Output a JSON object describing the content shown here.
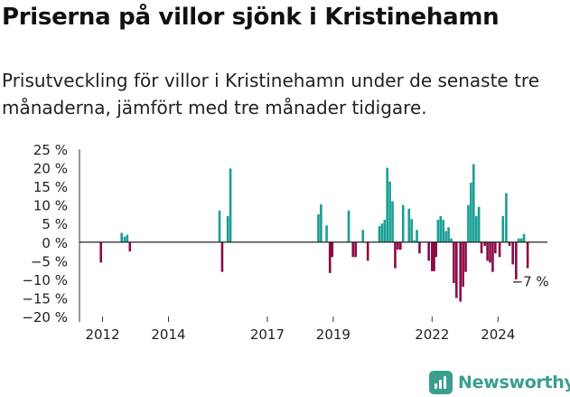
{
  "title": "Priserna på villor sjönk i Kristinehamn",
  "subtitle": "Prisutveckling för villor i Kristinehamn under de senaste tre månaderna, jämfört med tre månader tidigare.",
  "brand": "Newsworthy",
  "colors": {
    "positive": "#1a9e94",
    "negative": "#8c0a45",
    "axis": "#333333",
    "brand": "#3a9e8f"
  },
  "chart_data": {
    "type": "bar",
    "title": "Priserna på villor sjönk i Kristinehamn",
    "xlabel": "",
    "ylabel": "",
    "ylim": [
      -20,
      25
    ],
    "y_ticks": [
      25,
      20,
      15,
      10,
      5,
      0,
      -5,
      -10,
      -15,
      -20
    ],
    "y_tick_labels": [
      "25 %",
      "20 %",
      "15 %",
      "10 %",
      "5 %",
      "0 %",
      "−5 %",
      "−10 %",
      "−15 %",
      "−20 %"
    ],
    "x_ticks": [
      2012,
      2014,
      2017,
      2019,
      2022,
      2024
    ],
    "x_tick_labels": [
      "2012",
      "2014",
      "2017",
      "2019",
      "2022",
      "2024"
    ],
    "xlim": [
      2011.3,
      2025.5
    ],
    "annotation": {
      "text": "−7 %",
      "x": 2024.9,
      "y": -7
    },
    "x": [
      2011.95,
      2012.58,
      2012.67,
      2012.75,
      2012.83,
      2015.55,
      2015.63,
      2015.8,
      2015.88,
      2018.55,
      2018.63,
      2018.8,
      2018.9,
      2018.97,
      2019.47,
      2019.6,
      2019.68,
      2019.9,
      2020.05,
      2020.4,
      2020.48,
      2020.56,
      2020.64,
      2020.72,
      2020.8,
      2020.88,
      2020.96,
      2021.04,
      2021.12,
      2021.3,
      2021.38,
      2021.46,
      2021.54,
      2021.62,
      2021.9,
      2022.0,
      2022.06,
      2022.12,
      2022.18,
      2022.26,
      2022.34,
      2022.42,
      2022.5,
      2022.58,
      2022.66,
      2022.74,
      2022.86,
      2022.94,
      2023.02,
      2023.1,
      2023.18,
      2023.26,
      2023.34,
      2023.42,
      2023.5,
      2023.6,
      2023.68,
      2023.76,
      2023.84,
      2023.92,
      2024.05,
      2024.15,
      2024.25,
      2024.35,
      2024.45,
      2024.55,
      2024.63,
      2024.71,
      2024.79,
      2024.9
    ],
    "values": [
      -5.5,
      2.5,
      1.5,
      2,
      -2.5,
      8.5,
      -8,
      7,
      19.8,
      7.5,
      10.2,
      4.5,
      -8.3,
      -4,
      8.5,
      -4,
      -4,
      3.3,
      -5,
      4.3,
      5,
      6,
      20,
      16.3,
      11,
      -7,
      -2,
      -2,
      10,
      9,
      6.2,
      0.5,
      3.3,
      -3,
      -5,
      -7.8,
      -7.8,
      -4,
      6,
      7,
      6,
      3,
      4,
      1,
      -11,
      -15,
      -16,
      -12,
      -8,
      10,
      16,
      21,
      7,
      9.5,
      -3,
      -1,
      -5,
      -5.5,
      -8,
      -3,
      -4,
      7,
      13.2,
      -1,
      -6,
      -10,
      1,
      1,
      2.2,
      -7
    ]
  }
}
